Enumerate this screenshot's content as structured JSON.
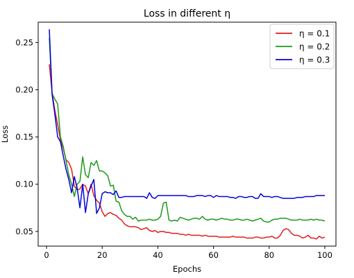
{
  "chart_data": {
    "type": "line",
    "title": "Loss in different η",
    "xlabel": "Epochs",
    "ylabel": "Loss",
    "xlim": [
      -3,
      104
    ],
    "ylim": [
      0.0345,
      0.2715
    ],
    "xticks": [
      0,
      20,
      40,
      60,
      80,
      100
    ],
    "yticks": [
      0.05,
      0.1,
      0.15,
      0.2,
      0.25
    ],
    "ytick_labels": [
      "0.05",
      "0.10",
      "0.15",
      "0.20",
      "0.25"
    ],
    "legend_position": "top-right",
    "series": [
      {
        "name": "η = 0.1",
        "color": "#e41a1c",
        "values": [
          0.227,
          0.197,
          0.178,
          0.163,
          0.147,
          0.138,
          0.126,
          0.123,
          0.116,
          0.098,
          0.094,
          0.095,
          0.1,
          0.098,
          0.09,
          0.1,
          0.088,
          0.083,
          0.08,
          0.071,
          0.066,
          0.069,
          0.07,
          0.068,
          0.067,
          0.064,
          0.062,
          0.058,
          0.056,
          0.055,
          0.055,
          0.055,
          0.054,
          0.052,
          0.053,
          0.054,
          0.051,
          0.05,
          0.051,
          0.049,
          0.05,
          0.05,
          0.049,
          0.049,
          0.048,
          0.048,
          0.048,
          0.047,
          0.047,
          0.046,
          0.047,
          0.046,
          0.046,
          0.046,
          0.046,
          0.045,
          0.046,
          0.045,
          0.045,
          0.045,
          0.045,
          0.044,
          0.044,
          0.044,
          0.044,
          0.044,
          0.045,
          0.044,
          0.044,
          0.044,
          0.044,
          0.043,
          0.043,
          0.043,
          0.044,
          0.044,
          0.043,
          0.043,
          0.044,
          0.044,
          0.045,
          0.043,
          0.043,
          0.046,
          0.051,
          0.053,
          0.052,
          0.048,
          0.046,
          0.046,
          0.045,
          0.043,
          0.044,
          0.046,
          0.043,
          0.043,
          0.042,
          0.045,
          0.043,
          0.044
        ]
      },
      {
        "name": "η = 0.2",
        "color": "#1a9a1a",
        "values": [
          0.255,
          0.196,
          0.19,
          0.185,
          0.15,
          0.14,
          0.125,
          0.11,
          0.1,
          0.087,
          0.1,
          0.103,
          0.129,
          0.11,
          0.107,
          0.123,
          0.12,
          0.125,
          0.114,
          0.114,
          0.112,
          0.109,
          0.098,
          0.099,
          0.082,
          0.081,
          0.072,
          0.068,
          0.066,
          0.066,
          0.063,
          0.065,
          0.061,
          0.062,
          0.062,
          0.062,
          0.063,
          0.062,
          0.062,
          0.063,
          0.066,
          0.08,
          0.081,
          0.062,
          0.061,
          0.062,
          0.061,
          0.065,
          0.064,
          0.063,
          0.062,
          0.063,
          0.064,
          0.064,
          0.063,
          0.066,
          0.063,
          0.062,
          0.063,
          0.063,
          0.062,
          0.063,
          0.064,
          0.063,
          0.063,
          0.062,
          0.062,
          0.063,
          0.063,
          0.062,
          0.062,
          0.063,
          0.062,
          0.061,
          0.062,
          0.063,
          0.064,
          0.061,
          0.06,
          0.06,
          0.062,
          0.063,
          0.063,
          0.064,
          0.064,
          0.064,
          0.063,
          0.062,
          0.062,
          0.062,
          0.063,
          0.062,
          0.062,
          0.062,
          0.063,
          0.062,
          0.063,
          0.062,
          0.062,
          0.061
        ]
      },
      {
        "name": "η = 0.3",
        "color": "#0000dd",
        "values": [
          0.264,
          0.195,
          0.174,
          0.15,
          0.145,
          0.13,
          0.116,
          0.105,
          0.091,
          0.108,
          0.096,
          0.075,
          0.1,
          0.07,
          0.09,
          0.098,
          0.105,
          0.069,
          0.075,
          0.09,
          0.092,
          0.091,
          0.091,
          0.089,
          0.093,
          0.086,
          0.086,
          0.087,
          0.087,
          0.087,
          0.087,
          0.087,
          0.087,
          0.087,
          0.087,
          0.085,
          0.091,
          0.086,
          0.085,
          0.088,
          0.088,
          0.088,
          0.088,
          0.088,
          0.088,
          0.088,
          0.088,
          0.088,
          0.088,
          0.088,
          0.087,
          0.087,
          0.087,
          0.088,
          0.088,
          0.088,
          0.087,
          0.088,
          0.088,
          0.086,
          0.088,
          0.087,
          0.087,
          0.087,
          0.087,
          0.086,
          0.086,
          0.085,
          0.087,
          0.087,
          0.086,
          0.086,
          0.087,
          0.087,
          0.085,
          0.085,
          0.09,
          0.087,
          0.087,
          0.087,
          0.086,
          0.087,
          0.087,
          0.086,
          0.085,
          0.085,
          0.085,
          0.085,
          0.085,
          0.086,
          0.086,
          0.086,
          0.087,
          0.087,
          0.087,
          0.087,
          0.088,
          0.088,
          0.088,
          0.088
        ]
      }
    ]
  }
}
